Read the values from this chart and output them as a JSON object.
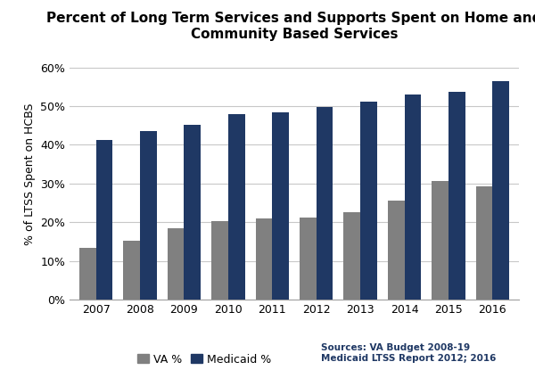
{
  "title": "Percent of Long Term Services and Supports Spent on Home and\nCommunity Based Services",
  "years": [
    2007,
    2008,
    2009,
    2010,
    2011,
    2012,
    2013,
    2014,
    2015,
    2016
  ],
  "va_values": [
    13.3,
    15.3,
    18.5,
    20.2,
    21.1,
    21.3,
    22.7,
    25.5,
    30.6,
    29.3
  ],
  "medicaid_values": [
    41.2,
    43.5,
    45.2,
    47.9,
    48.5,
    49.7,
    51.2,
    53.0,
    53.7,
    56.5
  ],
  "va_color": "#808080",
  "medicaid_color": "#1F3864",
  "ylabel": "% of LTSS Spent on HCBS",
  "ylim": [
    0,
    65
  ],
  "yticks": [
    0,
    10,
    20,
    30,
    40,
    50,
    60
  ],
  "ytick_labels": [
    "0%",
    "10%",
    "20%",
    "30%",
    "40%",
    "50%",
    "60%"
  ],
  "bar_width": 0.38,
  "source_text": "Sources: VA Budget 2008-19\nMedicaid LTSS Report 2012; 2016",
  "source_color": "#1F3864",
  "background_color": "#ffffff",
  "grid_color": "#c8c8c8",
  "legend_va_label": "VA %",
  "legend_medicaid_label": "Medicaid %",
  "title_fontsize": 11,
  "axis_fontsize": 9,
  "tick_fontsize": 9
}
